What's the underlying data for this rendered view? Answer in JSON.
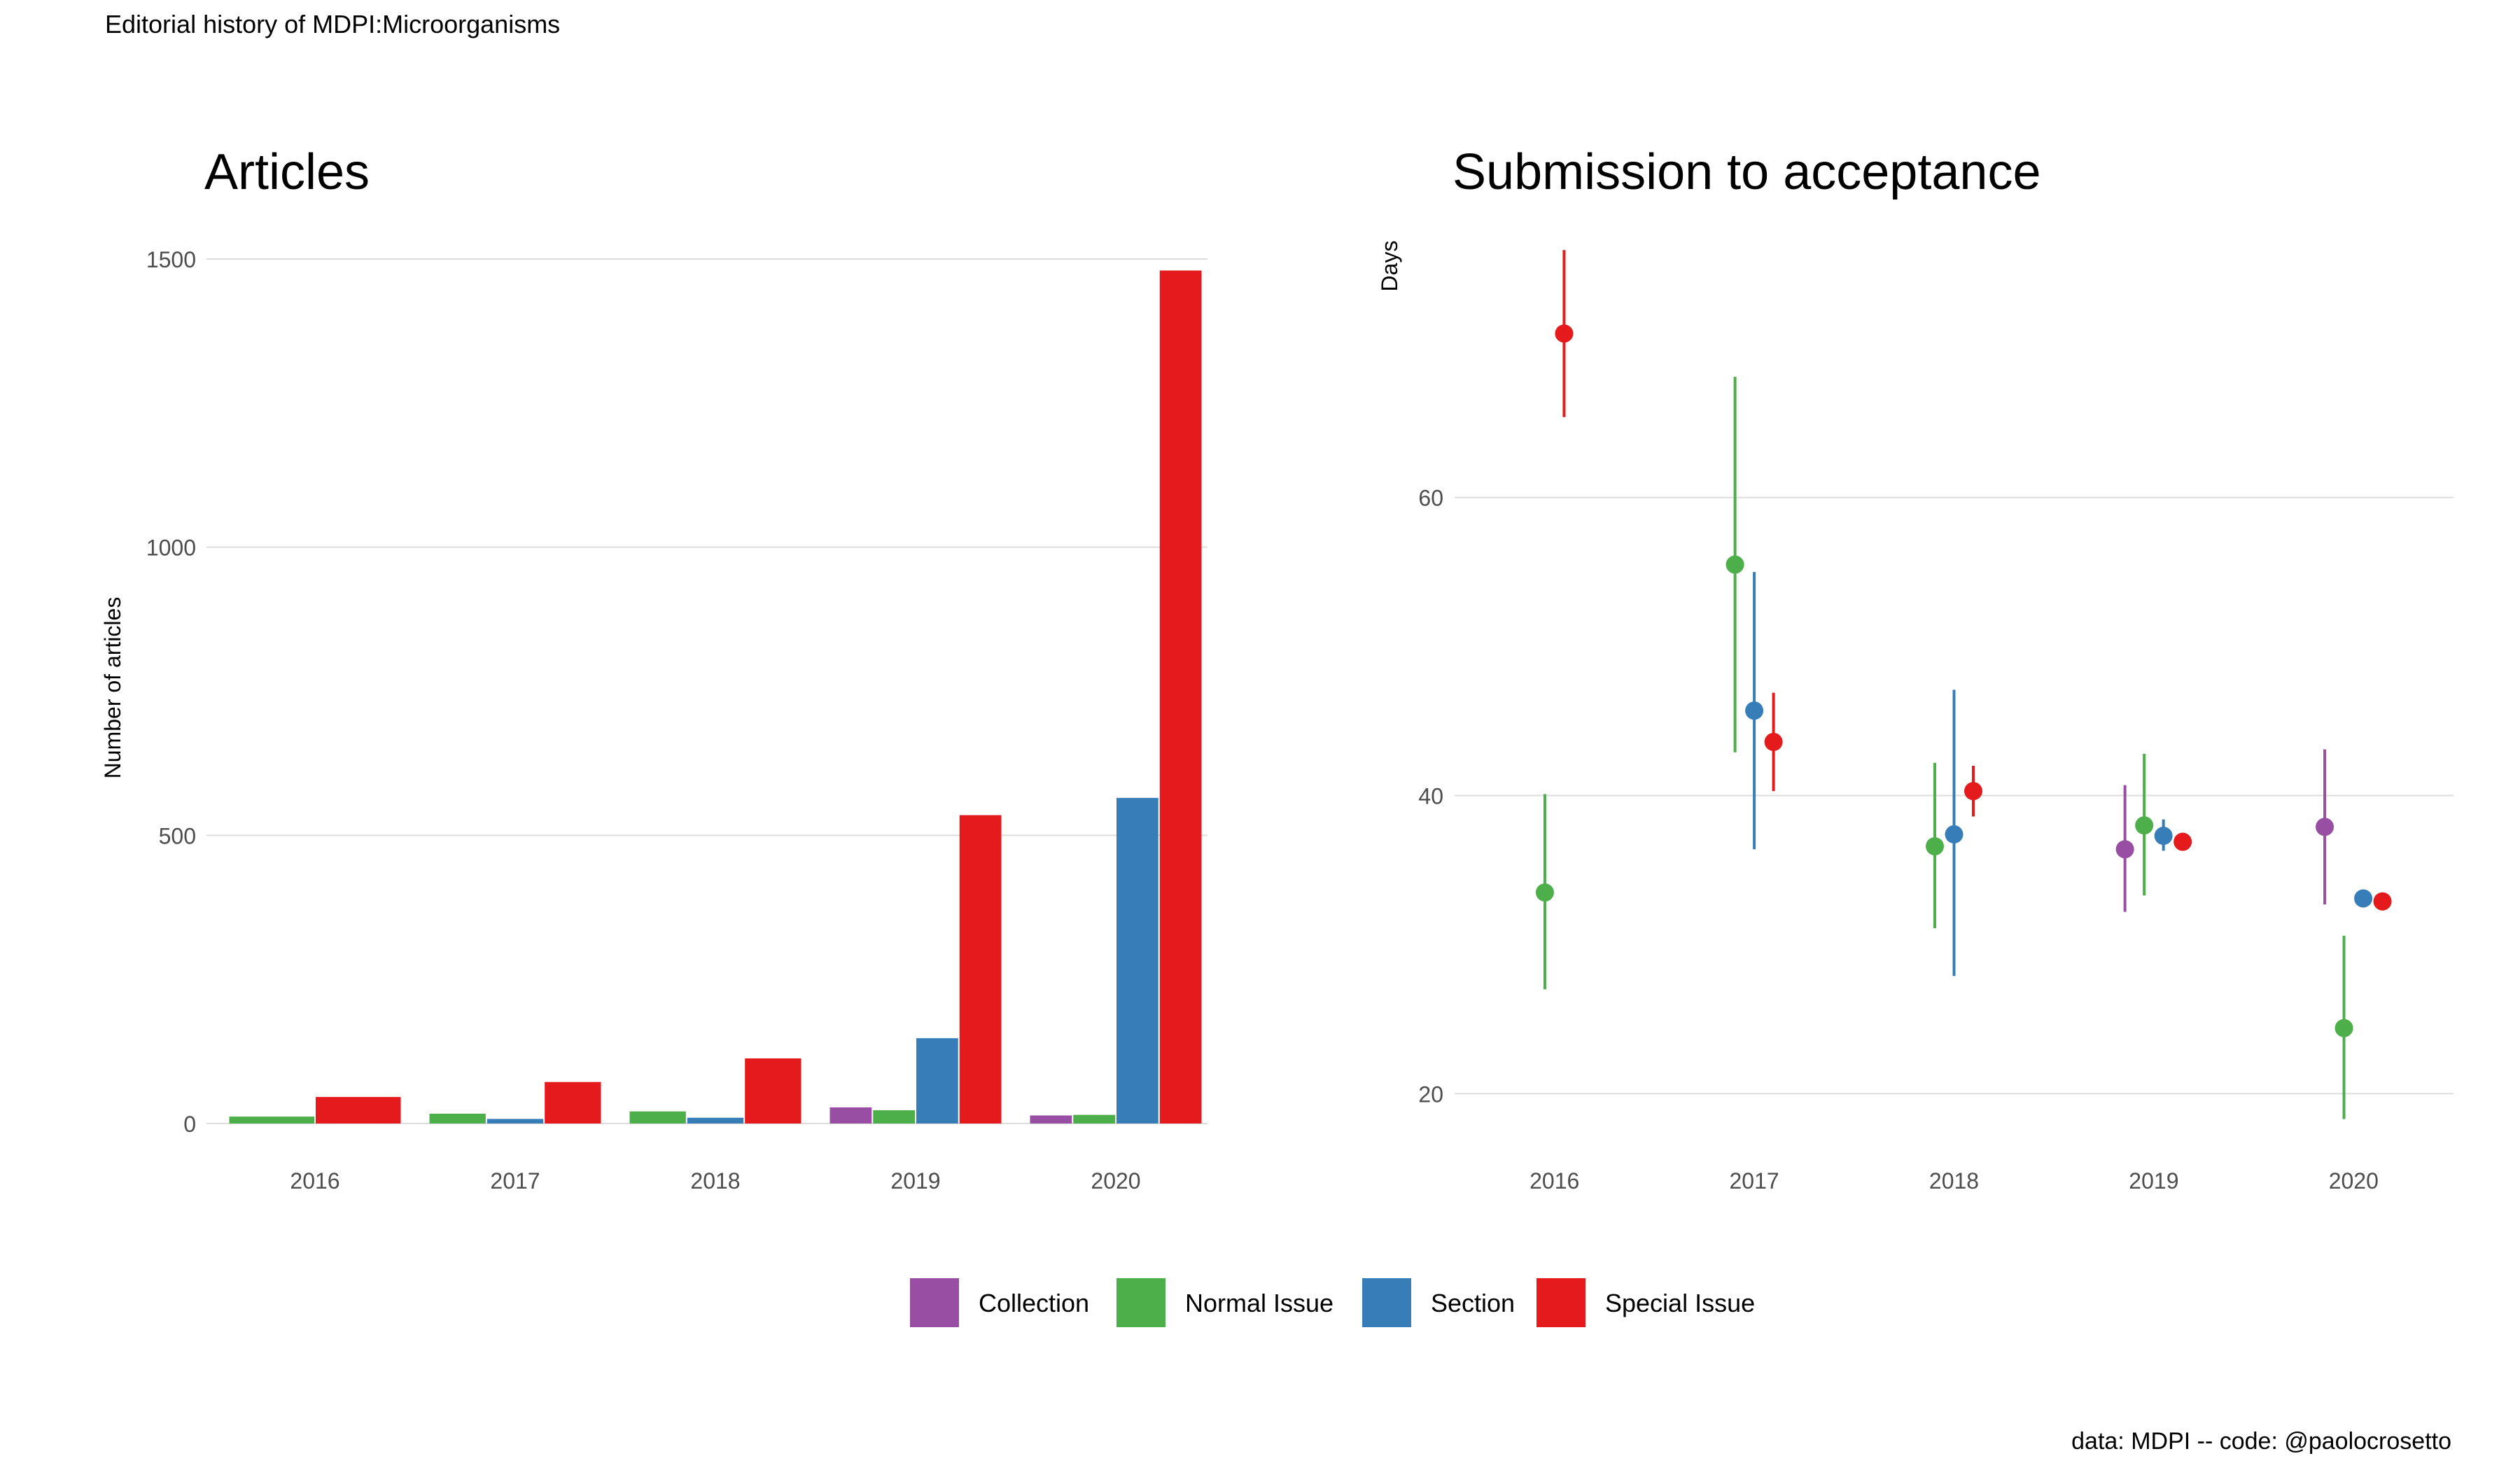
{
  "page": {
    "title": "Editorial history of MDPI:Microorganisms",
    "caption": "data: MDPI -- code: @paolocrosetto"
  },
  "colors": {
    "Collection": "#984EA3",
    "Normal Issue": "#4DAF4A",
    "Section": "#377EB8",
    "Special Issue": "#E41A1C",
    "grid": "#DDDDDD",
    "tick_text": "#4D4D4D"
  },
  "legend": {
    "position": "bottom",
    "items": [
      "Collection",
      "Normal Issue",
      "Section",
      "Special Issue"
    ]
  },
  "chart_data": [
    {
      "type": "bar",
      "title": "Articles",
      "xlabel": "",
      "ylabel": "Number of articles",
      "categories": [
        "2016",
        "2017",
        "2018",
        "2019",
        "2020"
      ],
      "ylim": [
        0,
        1500
      ],
      "yticks": [
        0,
        500,
        1000,
        1500
      ],
      "grid": true,
      "series": [
        {
          "name": "Collection",
          "values": [
            null,
            null,
            null,
            28,
            14
          ]
        },
        {
          "name": "Normal Issue",
          "values": [
            12,
            17,
            21,
            23,
            15
          ]
        },
        {
          "name": "Section",
          "values": [
            null,
            8,
            10,
            148,
            565
          ]
        },
        {
          "name": "Special Issue",
          "values": [
            46,
            72,
            113,
            535,
            1480
          ]
        }
      ]
    },
    {
      "type": "scatter",
      "subtype": "pointrange",
      "title": "Submission to acceptance",
      "xlabel": "",
      "ylabel": "Days",
      "categories": [
        "2016",
        "2017",
        "2018",
        "2019",
        "2020"
      ],
      "yticks": [
        20,
        40,
        60
      ],
      "ylim": [
        18,
        76
      ],
      "grid": true,
      "series": [
        {
          "name": "Collection",
          "points": [
            {
              "x": "2019",
              "y": 36.4,
              "ymin": 32.2,
              "ymax": 40.7
            },
            {
              "x": "2020",
              "y": 37.9,
              "ymin": 32.7,
              "ymax": 43.1
            }
          ]
        },
        {
          "name": "Normal Issue",
          "points": [
            {
              "x": "2016",
              "y": 33.5,
              "ymin": 27.0,
              "ymax": 40.1
            },
            {
              "x": "2017",
              "y": 55.5,
              "ymin": 42.9,
              "ymax": 68.1
            },
            {
              "x": "2018",
              "y": 36.6,
              "ymin": 31.1,
              "ymax": 42.2
            },
            {
              "x": "2019",
              "y": 38.0,
              "ymin": 33.3,
              "ymax": 42.8
            },
            {
              "x": "2020",
              "y": 24.4,
              "ymin": 18.3,
              "ymax": 30.6
            }
          ]
        },
        {
          "name": "Section",
          "points": [
            {
              "x": "2017",
              "y": 45.7,
              "ymin": 36.4,
              "ymax": 55.0
            },
            {
              "x": "2018",
              "y": 37.4,
              "ymin": 27.9,
              "ymax": 47.1
            },
            {
              "x": "2019",
              "y": 37.3,
              "ymin": 36.3,
              "ymax": 38.4
            },
            {
              "x": "2020",
              "y": 33.1,
              "ymin": 32.6,
              "ymax": 33.6
            }
          ]
        },
        {
          "name": "Special Issue",
          "points": [
            {
              "x": "2016",
              "y": 71.0,
              "ymin": 65.4,
              "ymax": 76.6
            },
            {
              "x": "2017",
              "y": 43.6,
              "ymin": 40.3,
              "ymax": 46.9
            },
            {
              "x": "2018",
              "y": 40.3,
              "ymin": 38.6,
              "ymax": 42.0
            },
            {
              "x": "2019",
              "y": 36.9,
              "ymin": 36.4,
              "ymax": 37.4
            },
            {
              "x": "2020",
              "y": 32.9,
              "ymin": 32.5,
              "ymax": 33.3
            }
          ]
        }
      ]
    }
  ]
}
